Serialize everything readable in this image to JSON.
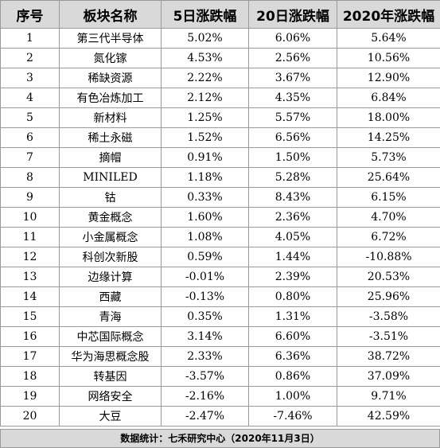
{
  "headers": [
    "序号",
    "板块名称",
    "5日涨跌幅",
    "20日涨跌幅",
    "2020年涨跌幅"
  ],
  "rows": [
    [
      "1",
      "第三代半导体",
      "5.02%",
      "6.06%",
      "5.64%"
    ],
    [
      "2",
      "氮化镓",
      "4.53%",
      "2.56%",
      "10.56%"
    ],
    [
      "3",
      "稀缺资源",
      "2.22%",
      "3.67%",
      "12.90%"
    ],
    [
      "4",
      "有色冶炼加工",
      "2.12%",
      "4.35%",
      "6.84%"
    ],
    [
      "5",
      "新材料",
      "1.25%",
      "5.57%",
      "18.00%"
    ],
    [
      "6",
      "稀土永磁",
      "1.52%",
      "6.56%",
      "14.25%"
    ],
    [
      "7",
      "摘帽",
      "0.91%",
      "1.50%",
      "5.73%"
    ],
    [
      "8",
      "MINILED",
      "1.18%",
      "5.28%",
      "25.64%"
    ],
    [
      "9",
      "钴",
      "0.33%",
      "8.43%",
      "6.15%"
    ],
    [
      "10",
      "黄金概念",
      "1.60%",
      "2.36%",
      "4.70%"
    ],
    [
      "11",
      "小金属概念",
      "1.08%",
      "4.05%",
      "6.72%"
    ],
    [
      "12",
      "科创次新股",
      "0.59%",
      "1.44%",
      "-10.88%"
    ],
    [
      "13",
      "边缘计算",
      "-0.01%",
      "2.39%",
      "20.53%"
    ],
    [
      "14",
      "西藏",
      "-0.13%",
      "0.80%",
      "25.96%"
    ],
    [
      "15",
      "青海",
      "0.35%",
      "1.31%",
      "-3.58%"
    ],
    [
      "16",
      "中芯国际概念",
      "3.14%",
      "6.60%",
      "-3.51%"
    ],
    [
      "17",
      "华为海思概念股",
      "2.33%",
      "6.36%",
      "38.72%"
    ],
    [
      "18",
      "转基因",
      "-3.57%",
      "0.86%",
      "37.09%"
    ],
    [
      "19",
      "网络安全",
      "-2.16%",
      "1.00%",
      "9.71%"
    ],
    [
      "20",
      "大豆",
      "-2.47%",
      "-7.46%",
      "42.59%"
    ]
  ],
  "footer": "数据统计：七禾研究中心（2020年11月3日）"
}
